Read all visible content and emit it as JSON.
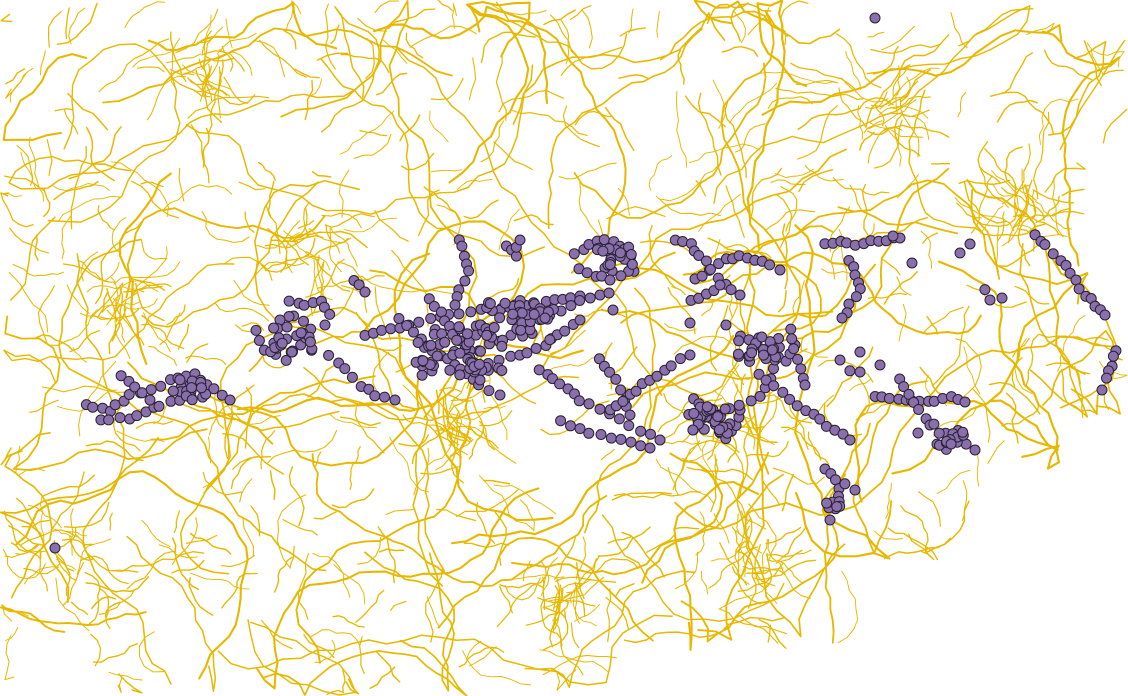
{
  "map": {
    "background_color": "#ffffff",
    "road_network": {
      "color": "#e8b800",
      "label": ""
    },
    "point_features": {
      "fill_color": "#8a6fad",
      "stroke_color": "#2a2233",
      "label": ""
    }
  }
}
